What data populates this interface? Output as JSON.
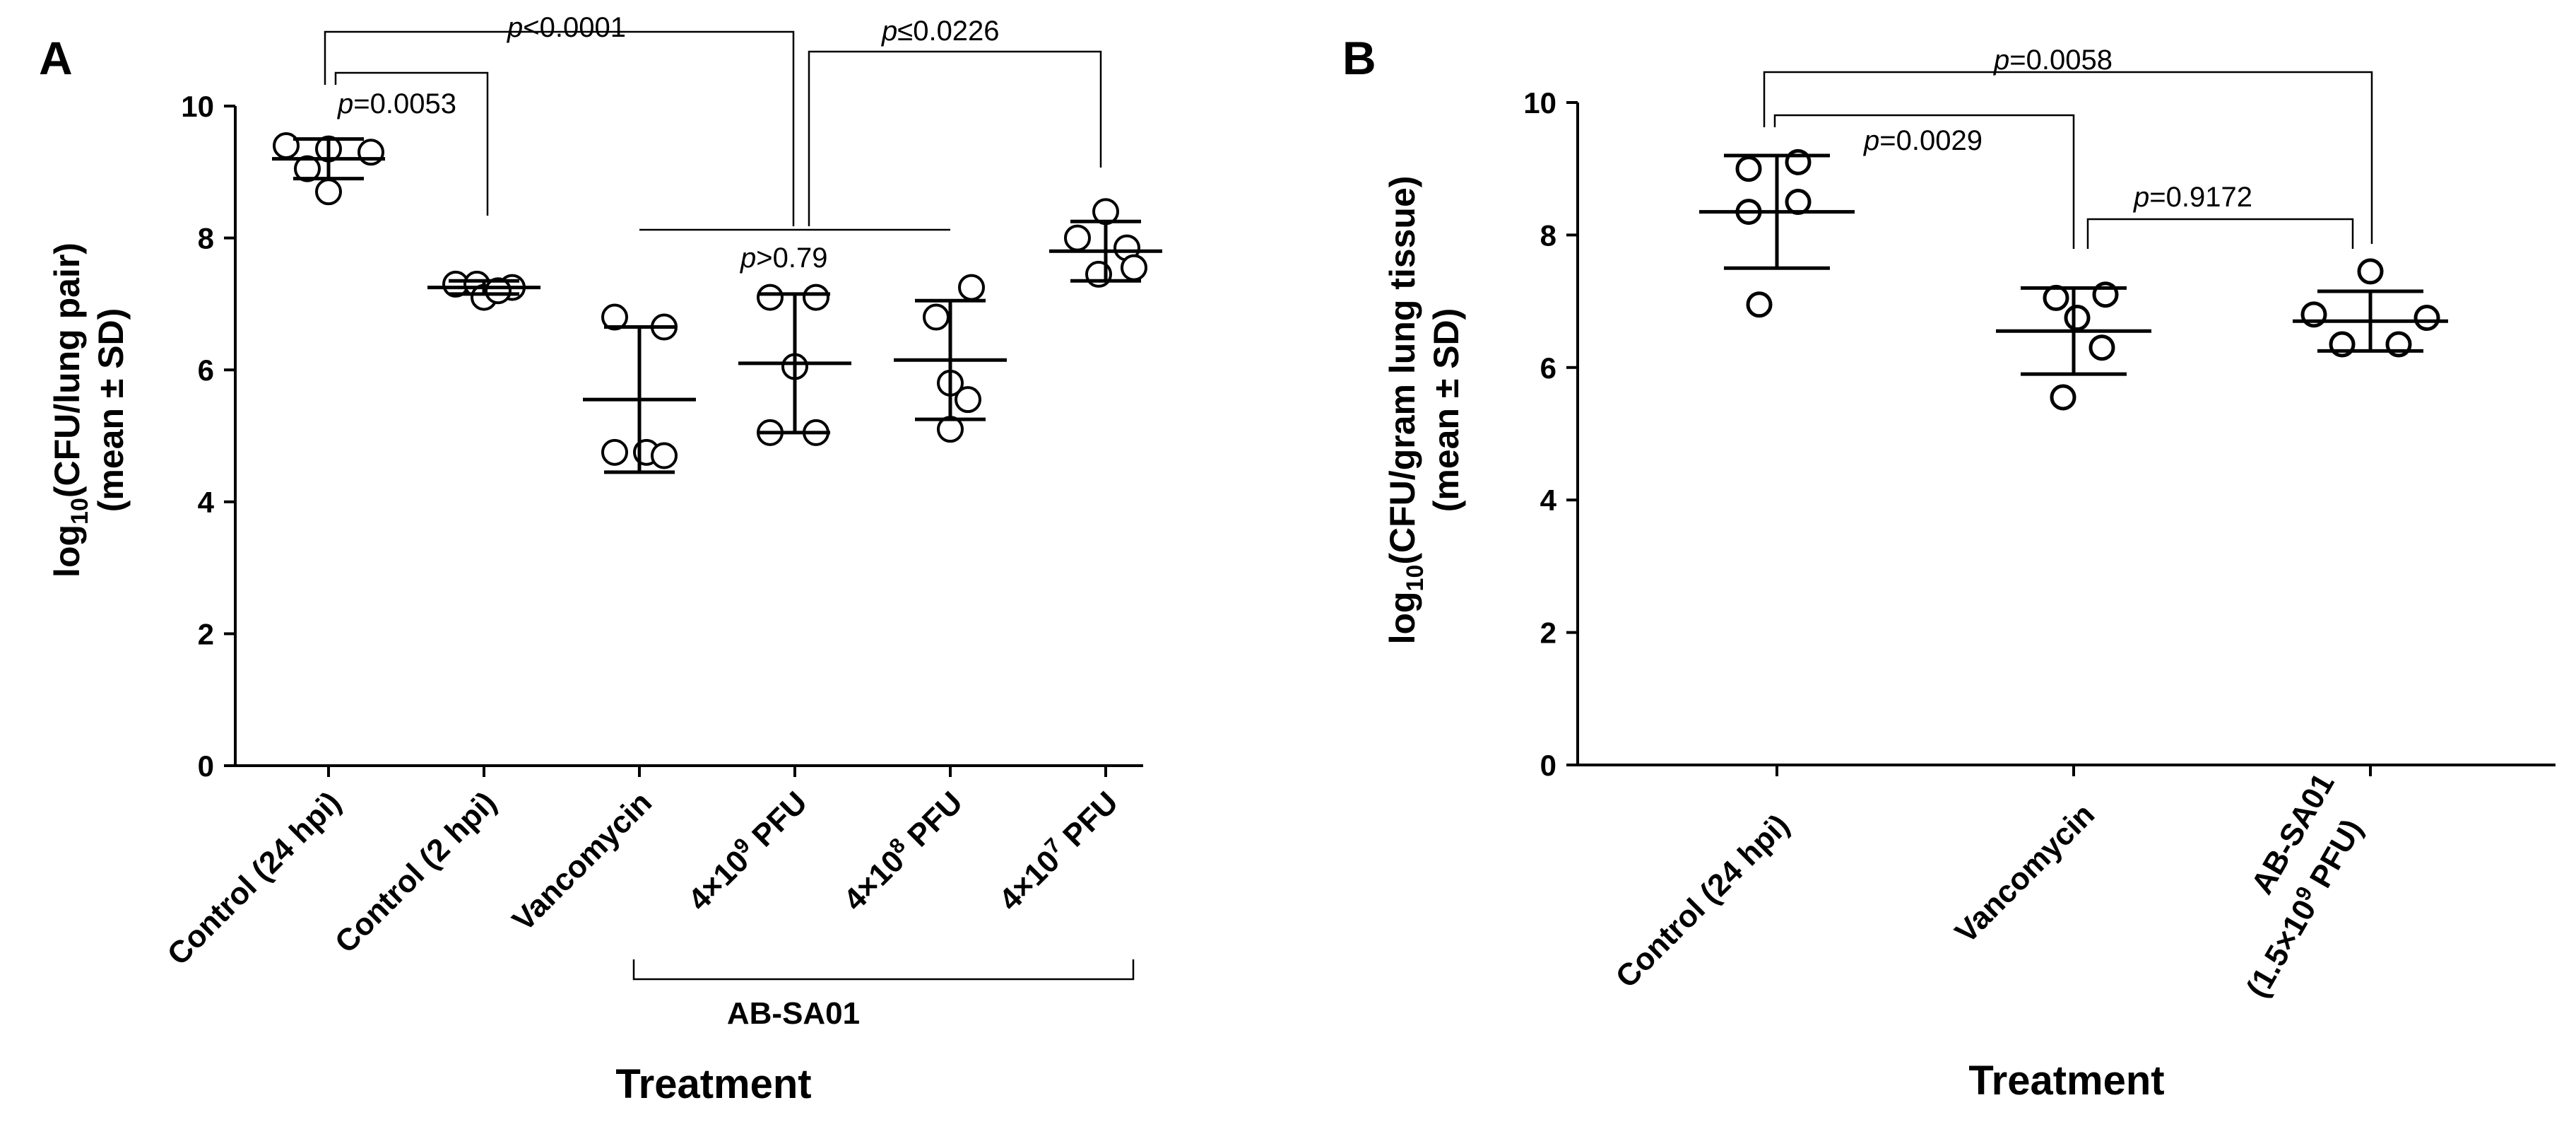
{
  "chart_data": [
    {
      "type": "scatter",
      "panel": "A",
      "ylabel_prefix": "log",
      "ylabel_sub": "10",
      "ylabel_rest": "(CFU/lung pair)",
      "ylabel_line2": "(mean ± SD)",
      "xlabel": "Treatment",
      "ylim": [
        0,
        10
      ],
      "yticks": [
        "0",
        "2",
        "4",
        "6",
        "8",
        "10"
      ],
      "group_label": "AB-SA01",
      "categories": [
        {
          "label": "Control (24 hpi)"
        },
        {
          "label": "Control (2 hpi)"
        },
        {
          "label": "Vancomycin"
        },
        {
          "label_pre": "4×10",
          "label_sup": "9",
          "label_post": " PFU"
        },
        {
          "label_pre": "4×10",
          "label_sup": "8",
          "label_post": " PFU"
        },
        {
          "label_pre": "4×10",
          "label_sup": "7",
          "label_post": " PFU"
        }
      ],
      "series": [
        {
          "name": "Control (24 hpi)",
          "mean": 9.2,
          "sd": 0.3,
          "points": [
            9.4,
            9.35,
            9.3,
            9.05,
            8.7
          ]
        },
        {
          "name": "Control (2 hpi)",
          "mean": 7.25,
          "sd": 0.1,
          "points": [
            7.3,
            7.3,
            7.25,
            7.1,
            7.2
          ]
        },
        {
          "name": "Vancomycin",
          "mean": 5.55,
          "sd": 1.1,
          "points": [
            6.8,
            6.65,
            4.75,
            4.75,
            4.7
          ]
        },
        {
          "name": "4×10^9 PFU",
          "mean": 6.1,
          "sd": 1.05,
          "points": [
            7.1,
            7.1,
            6.05,
            5.05,
            5.05
          ]
        },
        {
          "name": "4×10^8 PFU",
          "mean": 6.15,
          "sd": 0.9,
          "points": [
            7.25,
            6.8,
            5.8,
            5.55,
            5.1
          ]
        },
        {
          "name": "4×10^7 PFU",
          "mean": 7.8,
          "sd": 0.45,
          "points": [
            8.4,
            8.0,
            7.85,
            7.55,
            7.45
          ]
        }
      ],
      "annotations": [
        {
          "text_pre": "p",
          "text_post": "<0.0001"
        },
        {
          "text_pre": "p",
          "text_post": "=0.0053"
        },
        {
          "text_pre": "p",
          "text_post": "≤0.0226"
        },
        {
          "text_pre": "p",
          "text_post": ">0.79"
        }
      ]
    },
    {
      "type": "scatter",
      "panel": "B",
      "ylabel_prefix": "log",
      "ylabel_sub": "10",
      "ylabel_rest": "(CFU/gram lung tissue)",
      "ylabel_line2": "(mean ± SD)",
      "xlabel": "Treatment",
      "ylim": [
        0,
        10
      ],
      "yticks": [
        "0",
        "2",
        "4",
        "6",
        "8",
        "10"
      ],
      "categories": [
        {
          "label": "Control (24 hpi)"
        },
        {
          "label": "Vancomycin"
        },
        {
          "label": "AB-SA01",
          "label2_pre": "(1.5×10",
          "label2_sup": "9",
          "label2_post": " PFU)"
        }
      ],
      "series": [
        {
          "name": "Control (24 hpi)",
          "mean": 8.35,
          "sd": 0.85,
          "points": [
            9.1,
            9.0,
            8.5,
            8.35,
            6.95
          ]
        },
        {
          "name": "Vancomycin",
          "mean": 6.55,
          "sd": 0.65,
          "points": [
            7.1,
            7.05,
            6.75,
            6.3,
            5.55
          ]
        },
        {
          "name": "AB-SA01 (1.5×10^9 PFU)",
          "mean": 6.7,
          "sd": 0.45,
          "points": [
            7.45,
            6.8,
            6.75,
            6.35,
            6.35
          ]
        }
      ],
      "annotations": [
        {
          "text_pre": "p",
          "text_post": "=0.0058"
        },
        {
          "text_pre": "p",
          "text_post": "=0.0029"
        },
        {
          "text_pre": "p",
          "text_post": "=0.9172"
        }
      ]
    }
  ]
}
